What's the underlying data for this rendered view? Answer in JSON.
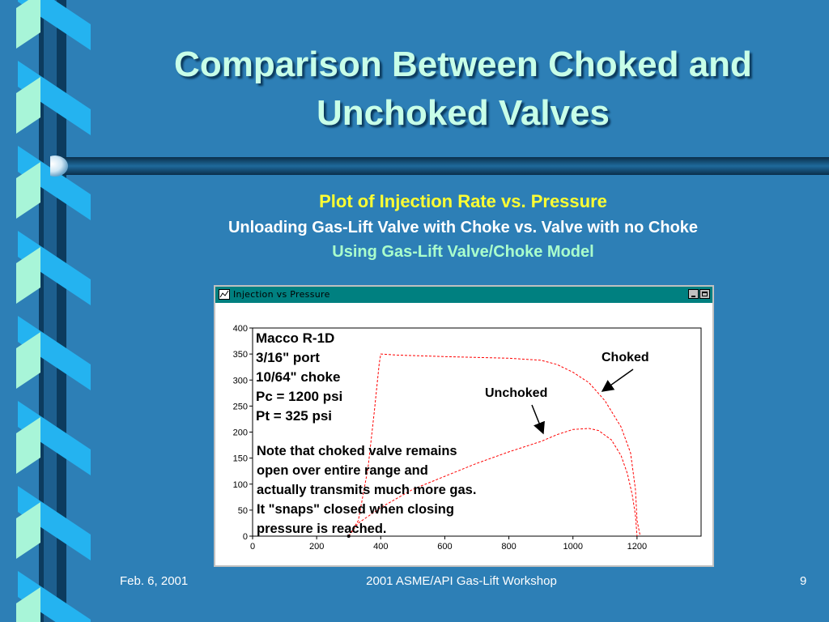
{
  "slide": {
    "title_line1": "Comparison Between Choked and",
    "title_line2": "Unchoked Valves",
    "subtitle1": "Plot of Injection Rate vs. Pressure",
    "subtitle2": "Unloading Gas-Lift Valve with Choke vs. Valve with no Choke",
    "subtitle3": "Using Gas-Lift Valve/Choke Model",
    "footer_date": "Feb. 6, 2001",
    "footer_event": "2001 ASME/API Gas-Lift Workshop",
    "footer_page": "9"
  },
  "window": {
    "title": "Injection vs Pressure",
    "icon": "chart-window-icon",
    "titlebar_color": "#008080"
  },
  "annotations": {
    "spec_lines": [
      "Macco R-1D",
      "3/16\" port",
      "10/64\" choke",
      "Pc = 1200 psi",
      "Pt = 325 psi"
    ],
    "note_lines": [
      "Note that choked valve remains",
      "open over entire range and",
      "actually transmits much more gas.",
      "It \"snaps\" closed when closing",
      "pressure is reached."
    ]
  },
  "chart_data": {
    "type": "line",
    "xlim": [
      0,
      1400
    ],
    "ylim": [
      0,
      400
    ],
    "xticks": [
      0,
      200,
      400,
      600,
      800,
      1000,
      1200
    ],
    "yticks": [
      0,
      50,
      100,
      150,
      200,
      250,
      300,
      350,
      400
    ],
    "line_color": "#ff0000",
    "line_style": "dashed",
    "series": [
      {
        "name": "Choked",
        "x": [
          300,
          330,
          360,
          380,
          395,
          400,
          450,
          600,
          800,
          900,
          950,
          1000,
          1050,
          1100,
          1150,
          1180,
          1195,
          1200,
          1210
        ],
        "y": [
          0,
          30,
          130,
          240,
          330,
          350,
          348,
          345,
          342,
          338,
          330,
          315,
          295,
          260,
          210,
          160,
          90,
          30,
          0
        ]
      },
      {
        "name": "Unchoked",
        "x": [
          300,
          330,
          400,
          500,
          600,
          700,
          800,
          900,
          950,
          1000,
          1050,
          1080,
          1120,
          1150,
          1170,
          1185,
          1195,
          1200
        ],
        "y": [
          0,
          25,
          55,
          90,
          115,
          140,
          162,
          182,
          195,
          205,
          207,
          203,
          185,
          155,
          120,
          80,
          40,
          0
        ]
      }
    ]
  }
}
